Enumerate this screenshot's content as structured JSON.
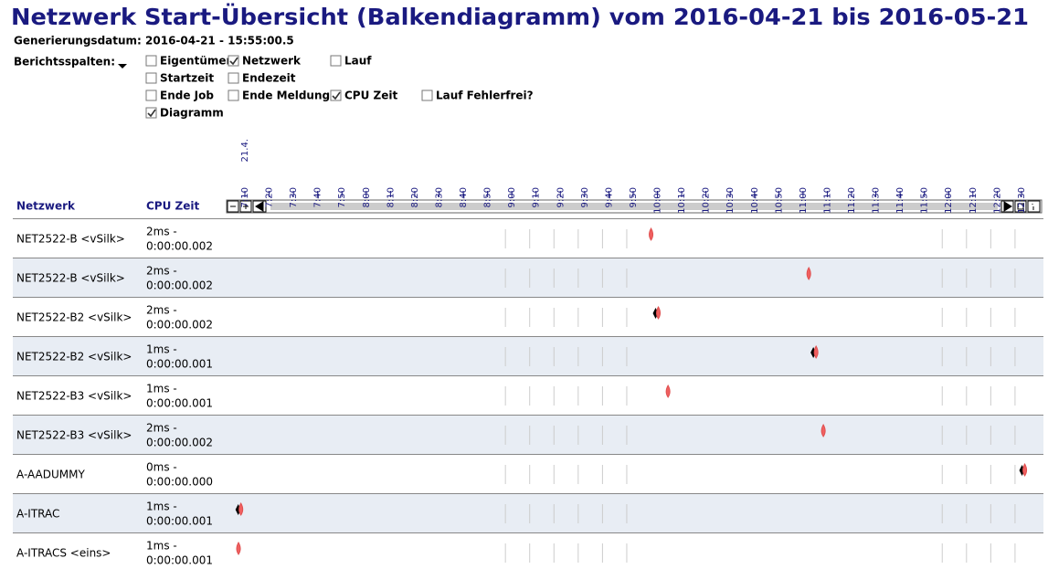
{
  "header": {
    "title": "Netzwerk Start-Übersicht (Balkendiagramm) vom 2016-04-21 bis 2016-05-21",
    "generated": "Generierungsdatum: 2016-04-21 - 15:55:00.5",
    "columns_label": "Berichtsspalten:"
  },
  "checkboxes": [
    [
      {
        "label": "Eigentümer",
        "checked": false
      },
      {
        "label": "Netzwerk",
        "checked": true
      },
      {
        "label": "Lauf",
        "checked": false
      }
    ],
    [
      {
        "label": "Startzeit",
        "checked": false
      },
      {
        "label": "Endezeit",
        "checked": false
      }
    ],
    [
      {
        "label": "Ende Job",
        "checked": false
      },
      {
        "label": "Ende Meldung",
        "checked": false
      },
      {
        "label": "CPU Zeit",
        "checked": true
      },
      {
        "label": "Lauf Fehlerfrei?",
        "checked": false
      }
    ],
    [
      {
        "label": "Diagramm",
        "checked": true
      }
    ]
  ],
  "timeline": {
    "date_label": "21.4.",
    "ticks": [
      "7:10",
      "7:20",
      "7:30",
      "7:40",
      "7:50",
      "8:00",
      "8:10",
      "8:20",
      "8:30",
      "8:40",
      "8:50",
      "9:00",
      "9:10",
      "9:20",
      "9:30",
      "9:40",
      "9:50",
      "10:00",
      "10:10",
      "10:20",
      "10:30",
      "10:40",
      "10:50",
      "11:00",
      "11:10",
      "11:20",
      "11:30",
      "11:40",
      "11:50",
      "12:00",
      "12:10",
      "12:20",
      "12:30"
    ]
  },
  "table": {
    "headers": [
      "Netzwerk",
      "CPU Zeit"
    ],
    "rows": [
      {
        "name": "NET2522-B <vSilk>",
        "cpu": [
          "2ms -",
          "0:00:00.002"
        ],
        "start": 597,
        "end_marker": false
      },
      {
        "name": "NET2522-B <vSilk>",
        "cpu": [
          "2ms -",
          "0:00:00.002"
        ],
        "start": 662,
        "end_marker": false
      },
      {
        "name": "NET2522-B2 <vSilk>",
        "cpu": [
          "2ms -",
          "0:00:00.002"
        ],
        "start": 600,
        "end_marker": true
      },
      {
        "name": "NET2522-B2 <vSilk>",
        "cpu": [
          "1ms -",
          "0:00:00.001"
        ],
        "start": 665,
        "end_marker": true
      },
      {
        "name": "NET2522-B3 <vSilk>",
        "cpu": [
          "1ms -",
          "0:00:00.001"
        ],
        "start": 604,
        "end_marker": false
      },
      {
        "name": "NET2522-B3 <vSilk>",
        "cpu": [
          "2ms -",
          "0:00:00.002"
        ],
        "start": 668,
        "end_marker": false
      },
      {
        "name": "A-AADUMMY",
        "cpu": [
          "0ms -",
          "0:00:00.000"
        ],
        "start": 751,
        "end_marker": true
      },
      {
        "name": "A-ITRAC",
        "cpu": [
          "1ms -",
          "0:00:00.001"
        ],
        "start": 428,
        "end_marker": true
      },
      {
        "name": "A-ITRACS <eins>",
        "cpu": [
          "1ms -",
          "0:00:00.001"
        ],
        "start": 427,
        "end_marker": false
      }
    ]
  }
}
